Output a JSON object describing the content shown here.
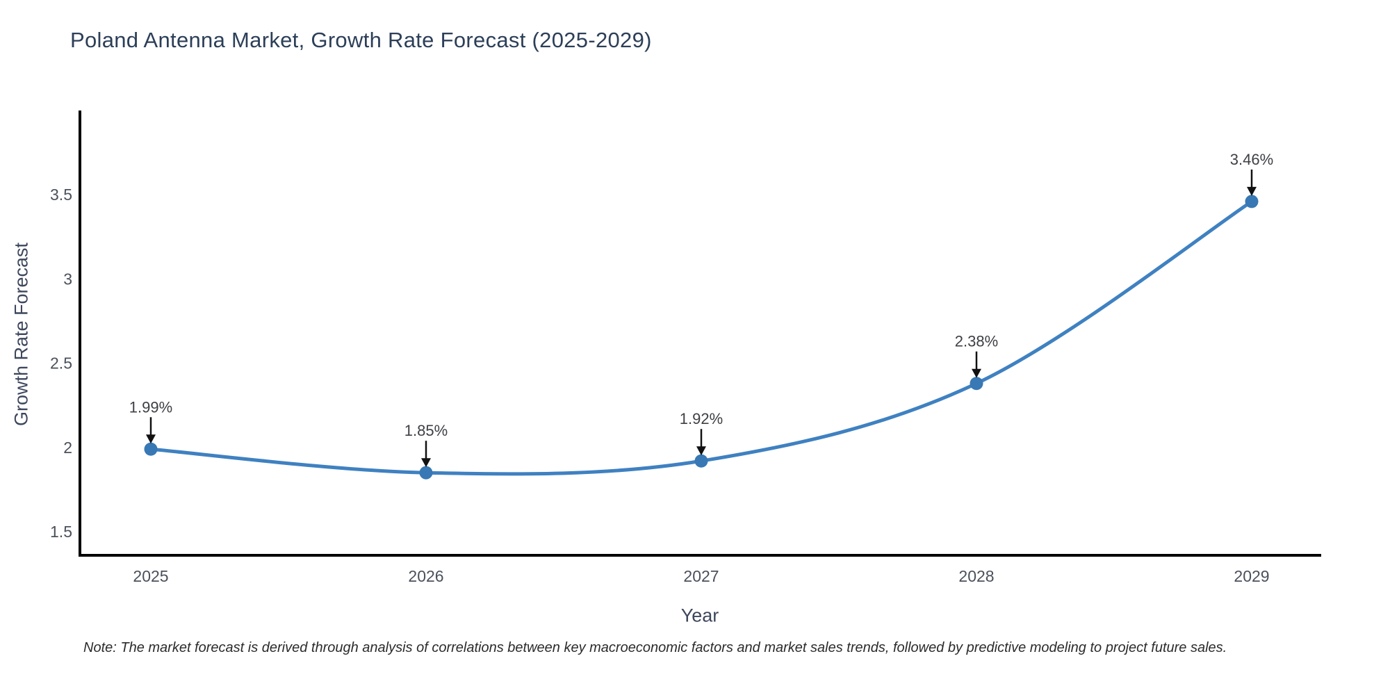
{
  "page": {
    "title": "Poland Antenna Market, Growth Rate Forecast (2025-2029)"
  },
  "note": "Note: The market forecast is derived through analysis of correlations between key macroeconomic factors and market sales trends, followed by predictive modeling to project future sales.",
  "chart_data": {
    "type": "line",
    "title": "Poland Antenna Market, Growth Rate Forecast (2025-2029)",
    "xlabel": "Year",
    "ylabel": "Growth Rate Forecast",
    "categories": [
      "2025",
      "2026",
      "2027",
      "2028",
      "2029"
    ],
    "series": [
      {
        "name": "Growth Rate Forecast",
        "values": [
          1.99,
          1.85,
          1.92,
          2.38,
          3.46
        ],
        "point_labels": [
          "1.99%",
          "1.85%",
          "1.92%",
          "2.38%",
          "3.46%"
        ]
      }
    ],
    "y_ticks": [
      1.5,
      2,
      2.5,
      3,
      3.5
    ],
    "y_tick_labels": [
      "1.5",
      "2",
      "2.5",
      "3",
      "3.5"
    ],
    "ylim": [
      1.36,
      4.0
    ],
    "grid": false,
    "legend_position": "none",
    "line_shape": "spline",
    "annotations_have_arrows": true,
    "colors": {
      "line": "#3f81c1",
      "marker": "#3878b4",
      "axis": "#000000",
      "tick_label": "#4a505c",
      "axis_title": "#3d475c",
      "title": "#2c3f58",
      "annotation_text": "#3d3f44",
      "arrow": "#111111",
      "note": "#2b2b2b",
      "background": "#ffffff"
    }
  }
}
